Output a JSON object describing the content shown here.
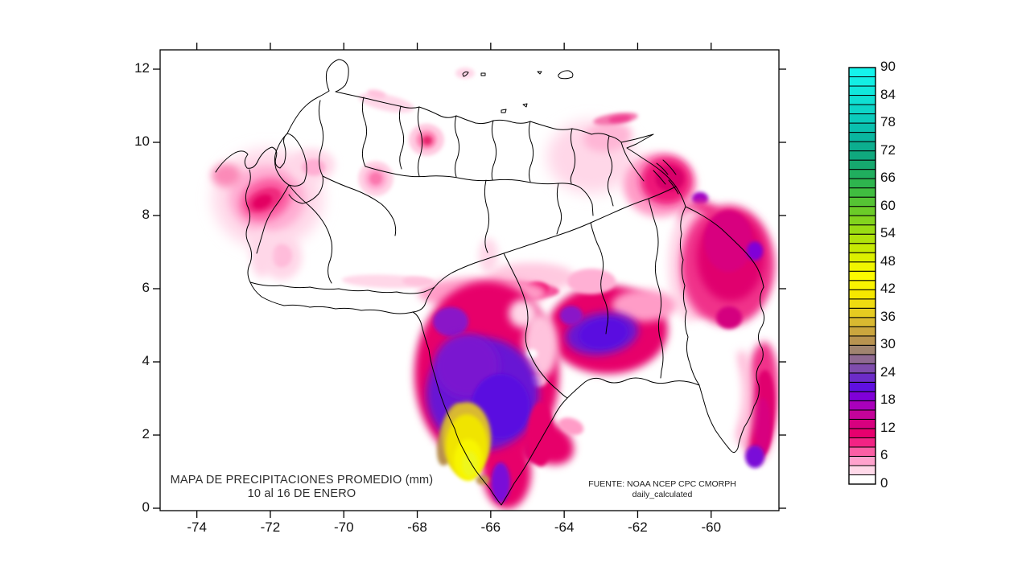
{
  "figure": {
    "title_line1": "MAPA DE PRECIPITACIONES PROMEDIO (mm)",
    "title_line2": "10 al 16 DE ENERO",
    "source_line1": "FUENTE: NOAA NCEP CPC CMORPH",
    "source_line2": "daily_calculated",
    "axis_color": "#000000",
    "background": "#ffffff"
  },
  "x_axis": {
    "ticks": [
      -74,
      -72,
      -70,
      -68,
      -66,
      -64,
      -62,
      -60
    ]
  },
  "y_axis": {
    "ticks": [
      0,
      2,
      4,
      6,
      8,
      10,
      12
    ]
  },
  "colorbar": {
    "min": 0,
    "max": 90,
    "segment_step": 2,
    "label_step": 6,
    "labels": [
      0,
      6,
      12,
      18,
      24,
      30,
      36,
      42,
      48,
      54,
      60,
      66,
      72,
      78,
      84,
      90
    ],
    "segment_colors": [
      "#ffffff",
      "#ffd9e9",
      "#ffa2cd",
      "#fb5fa5",
      "#f22384",
      "#e7006e",
      "#d8007f",
      "#c40399",
      "#a900bb",
      "#8000d8",
      "#5f10e0",
      "#6c2cc8",
      "#7f4dad",
      "#8f6a92",
      "#a08470",
      "#b89350",
      "#cba63e",
      "#d9b930",
      "#e5cb20",
      "#eedb10",
      "#f5e800",
      "#faf300",
      "#fcfa00",
      "#f0f500",
      "#dcf000",
      "#c6ea04",
      "#b0e30c",
      "#99dc14",
      "#82d41e",
      "#6bcc28",
      "#55c434",
      "#40bd40",
      "#2eb54e",
      "#20ae5e",
      "#16a86e",
      "#10a87e",
      "#0cae8f",
      "#0ab69f",
      "#0ac0ae",
      "#0bcbbc",
      "#0dd5c8",
      "#0fdfd3",
      "#11e7dc",
      "#13eee4",
      "#15f4ec"
    ]
  },
  "chart_data": {
    "type": "filled-contour-map",
    "region": "Venezuela",
    "units": "mm",
    "lon_range": [
      -75.0,
      -58.2
    ],
    "lat_range": [
      -0.07,
      12.53
    ],
    "scale": "precipitation 0-90 mm, contour interval 2 mm",
    "features": [
      {
        "name": "zulia-halo",
        "lon": -72.06,
        "lat": 8.46,
        "rx": 1.5,
        "ry": 1.36,
        "rot": 0,
        "c": "#ffd7e8",
        "b": "l",
        "mm": 3
      },
      {
        "name": "zulia-mid",
        "lon": -72.09,
        "lat": 8.46,
        "rx": 1.03,
        "ry": 0.9,
        "rot": 0,
        "c": "#ffaed3",
        "b": "m",
        "mm": 5
      },
      {
        "name": "zulia-hot",
        "lon": -72.13,
        "lat": 8.44,
        "rx": 0.72,
        "ry": 0.55,
        "rot": -25,
        "c": "#fb5ca0",
        "b": "m",
        "mm": 7
      },
      {
        "name": "zulia-core",
        "lon": -72.17,
        "lat": 8.42,
        "rx": 0.5,
        "ry": 0.3,
        "rot": -25,
        "c": "#ef2a7e",
        "b": "s",
        "mm": 9
      },
      {
        "name": "zulia-max",
        "lon": -72.22,
        "lat": 8.38,
        "rx": 0.28,
        "ry": 0.17,
        "rot": -25,
        "c": "#e30062,",
        "b": "s",
        "mm": 11
      },
      {
        "name": "guajira-pink",
        "lon": -73.2,
        "lat": 9.1,
        "rx": 0.4,
        "ry": 0.32,
        "rot": 0,
        "c": "#fb8ab8",
        "b": "m",
        "mm": 6
      },
      {
        "name": "falcon-arm",
        "lon": -70.86,
        "lat": 9.38,
        "rx": 0.62,
        "ry": 0.45,
        "rot": 0,
        "c": "#ffd7e8",
        "b": "m",
        "mm": 3
      },
      {
        "name": "falcon-arm-core",
        "lon": -70.82,
        "lat": 9.32,
        "rx": 0.32,
        "ry": 0.23,
        "rot": 0,
        "c": "#ffaed3",
        "b": "s",
        "mm": 4
      },
      {
        "name": "tachira-arm",
        "lon": -71.69,
        "lat": 6.86,
        "rx": 0.55,
        "ry": 0.62,
        "rot": 0,
        "c": "#ffd7e8",
        "b": "m",
        "mm": 3
      },
      {
        "name": "tachira-arm-mid",
        "lon": -71.69,
        "lat": 6.9,
        "rx": 0.28,
        "ry": 0.32,
        "rot": 0,
        "c": "#ffbcda",
        "b": "s",
        "mm": 4
      },
      {
        "name": "border-strip",
        "lon": -72.24,
        "lat": 6.97,
        "rx": 0.31,
        "ry": 0.66,
        "rot": 0,
        "c": "#ffd7e8",
        "b": "m",
        "mm": 2
      },
      {
        "name": "coast-streak-w",
        "lon": -68.84,
        "lat": 11.08,
        "rx": 0.77,
        "ry": 0.22,
        "rot": 12,
        "c": "#ffd7e8",
        "b": "s",
        "mm": 2
      },
      {
        "name": "coast-streak-w2",
        "lon": -69.11,
        "lat": 11.32,
        "rx": 0.26,
        "ry": 0.11,
        "rot": 12,
        "c": "#ffc3dd",
        "b": "s",
        "mm": 3
      },
      {
        "name": "cojedes-ring",
        "lon": -69.13,
        "lat": 9.01,
        "rx": 0.48,
        "ry": 0.48,
        "rot": 0,
        "c": "#ffd0e4",
        "b": "s",
        "mm": 3
      },
      {
        "name": "cojedes-ring2",
        "lon": -69.13,
        "lat": 9.01,
        "rx": 0.31,
        "ry": 0.31,
        "rot": 0,
        "c": "#ffaed3",
        "b": "s",
        "mm": 4
      },
      {
        "name": "cojedes-ring3",
        "lon": -69.13,
        "lat": 9.01,
        "rx": 0.18,
        "ry": 0.18,
        "rot": 0,
        "c": "#fb77ae",
        "b": "s",
        "mm": 6
      },
      {
        "name": "caracas-halo",
        "lon": -67.75,
        "lat": 10.07,
        "rx": 0.48,
        "ry": 0.44,
        "rot": 0,
        "c": "#ffc9e0",
        "b": "s",
        "mm": 3
      },
      {
        "name": "caracas-mid",
        "lon": -67.75,
        "lat": 10.07,
        "rx": 0.28,
        "ry": 0.26,
        "rot": 0,
        "c": "#ff8ab8",
        "b": "s",
        "mm": 6
      },
      {
        "name": "caracas-max",
        "lon": -67.73,
        "lat": 10.05,
        "rx": 0.14,
        "ry": 0.13,
        "rot": 0,
        "c": "#e8256e",
        "b": "s",
        "mm": 10
      },
      {
        "name": "curacao-tint",
        "lon": -66.7,
        "lat": 11.89,
        "rx": 0.26,
        "ry": 0.15,
        "rot": 0,
        "c": "#ffd7e8",
        "b": "s",
        "mm": 2
      },
      {
        "name": "sucre-pale",
        "lon": -63.26,
        "lat": 9.6,
        "rx": 1.2,
        "ry": 0.99,
        "rot": 0,
        "c": "#ffd7e8",
        "b": "l",
        "mm": 2
      },
      {
        "name": "sucre-mid",
        "lon": -62.82,
        "lat": 10.15,
        "rx": 0.66,
        "ry": 0.4,
        "rot": -10,
        "c": "#ffb6d6",
        "b": "m",
        "mm": 4
      },
      {
        "name": "paria-streak",
        "lon": -62.6,
        "lat": 10.64,
        "rx": 0.61,
        "ry": 0.15,
        "rot": -8,
        "c": "#f576ae",
        "b": "s",
        "mm": 6
      },
      {
        "name": "paria-streak-core",
        "lon": -62.49,
        "lat": 10.64,
        "rx": 0.31,
        "ry": 0.09,
        "rot": -8,
        "c": "#ef3d90",
        "b": "s",
        "mm": 8
      },
      {
        "name": "delta-halo",
        "lon": -61.4,
        "lat": 8.84,
        "rx": 0.99,
        "ry": 0.88,
        "rot": 0,
        "c": "#ff9cc7",
        "b": "m",
        "mm": 5
      },
      {
        "name": "delta-deep",
        "lon": -61.22,
        "lat": 8.95,
        "rx": 0.7,
        "ry": 0.66,
        "rot": 0,
        "c": "#ee1878",
        "b": "m",
        "mm": 9
      },
      {
        "name": "delta-max",
        "lon": -61.13,
        "lat": 9.01,
        "rx": 0.39,
        "ry": 0.35,
        "rot": 0,
        "c": "#d8006a",
        "b": "s",
        "mm": 12
      },
      {
        "name": "delta-purple",
        "lon": -60.3,
        "lat": 8.46,
        "rx": 0.22,
        "ry": 0.18,
        "rot": 0,
        "c": "#9b00c8",
        "b": "s",
        "mm": 16
      },
      {
        "name": "delta-connect",
        "lon": -60.3,
        "lat": 7.96,
        "rx": 0.55,
        "ry": 0.44,
        "rot": 0,
        "c": "#f0308a",
        "b": "m",
        "mm": 8
      },
      {
        "name": "essequibo-pale",
        "lon": -60.56,
        "lat": 6.64,
        "rx": 0.61,
        "ry": 1.54,
        "rot": 0,
        "c": "#ffd7e8",
        "b": "m",
        "mm": 2
      },
      {
        "name": "essequibo-fringe",
        "lon": -60.26,
        "lat": 6.64,
        "rx": 0.57,
        "ry": 1.43,
        "rot": 0,
        "c": "#ff9cc7",
        "b": "m",
        "mm": 4
      },
      {
        "name": "east-body",
        "lon": -59.53,
        "lat": 6.64,
        "rx": 1.27,
        "ry": 1.65,
        "rot": 0,
        "c": "#f0308a",
        "b": "m",
        "mm": 8
      },
      {
        "name": "east-deep",
        "lon": -59.47,
        "lat": 6.86,
        "rx": 0.92,
        "ry": 1.21,
        "rot": 0,
        "c": "#e0006e",
        "b": "m",
        "mm": 11
      },
      {
        "name": "east-deeper",
        "lon": -59.53,
        "lat": 7.3,
        "rx": 0.66,
        "ry": 0.84,
        "rot": 0,
        "c": "#d8007f",
        "b": "s",
        "mm": 13
      },
      {
        "name": "east-dark-sub",
        "lon": -59.51,
        "lat": 5.21,
        "rx": 0.35,
        "ry": 0.31,
        "rot": 0,
        "c": "#d4007f",
        "b": "s",
        "mm": 13
      },
      {
        "name": "east-purple",
        "lon": -58.81,
        "lat": 7.03,
        "rx": 0.22,
        "ry": 0.26,
        "rot": 0,
        "c": "#8000d8",
        "b": "s",
        "mm": 18
      },
      {
        "name": "lobe-band",
        "lon": -58.66,
        "lat": 2.9,
        "rx": 0.48,
        "ry": 1.65,
        "rot": 4,
        "c": "#f0308a",
        "b": "m",
        "mm": 8
      },
      {
        "name": "lobe-deeper",
        "lon": -58.61,
        "lat": 2.57,
        "rx": 0.33,
        "ry": 1.21,
        "rot": 4,
        "c": "#e0006e",
        "b": "s",
        "mm": 11
      },
      {
        "name": "lobe-deepest",
        "lon": -58.59,
        "lat": 2.24,
        "rx": 0.22,
        "ry": 0.77,
        "rot": 0,
        "c": "#d8007f",
        "b": "s",
        "mm": 13
      },
      {
        "name": "lobe-pale-strip",
        "lon": -59.16,
        "lat": 3.01,
        "rx": 0.31,
        "ry": 1.32,
        "rot": 0,
        "c": "#ffc3dd",
        "b": "m",
        "mm": 3
      },
      {
        "name": "lobe-white",
        "lon": -59.69,
        "lat": 3.12,
        "rx": 0.53,
        "ry": 1.21,
        "rot": 0,
        "c": "#ffffff",
        "b": "m",
        "mm": 0
      },
      {
        "name": "lobe-purple",
        "lon": -58.81,
        "lat": 1.41,
        "rx": 0.26,
        "ry": 0.31,
        "rot": 0,
        "c": "#7a10d8",
        "b": "s",
        "mm": 19
      },
      {
        "name": "band-pale",
        "lon": -64.9,
        "lat": 6.31,
        "rx": 1.21,
        "ry": 0.4,
        "rot": 0,
        "c": "#ffc9e0",
        "b": "m",
        "mm": 3
      },
      {
        "name": "band-magenta",
        "lon": -65.45,
        "lat": 5.93,
        "rx": 1.32,
        "ry": 0.26,
        "rot": 0,
        "c": "#f5509a",
        "b": "s",
        "mm": 7
      },
      {
        "name": "band-diamond",
        "lon": -64.73,
        "lat": 5.98,
        "rx": 0.31,
        "ry": 0.2,
        "rot": 0,
        "c": "#f00468",
        "b": "s",
        "mm": 10
      },
      {
        "name": "amazonas-pale-top",
        "lon": -66.22,
        "lat": 5.87,
        "rx": 1.75,
        "ry": 0.44,
        "rot": 0,
        "c": "#ff9cc7",
        "b": "m",
        "mm": 4
      },
      {
        "name": "west-wedge",
        "lon": -68.84,
        "lat": 6.2,
        "rx": 1.21,
        "ry": 0.18,
        "rot": 2,
        "c": "#ffd7e8",
        "b": "s",
        "mm": 2
      },
      {
        "name": "west-wedge2",
        "lon": -67.97,
        "lat": 6.2,
        "rx": 0.44,
        "ry": 0.13,
        "rot": 2,
        "c": "#ffc3dd",
        "b": "s",
        "mm": 3
      },
      {
        "name": "tongue-n",
        "lon": -66.06,
        "lat": 6.9,
        "rx": 0.26,
        "ry": 0.48,
        "rot": 0,
        "c": "#ffd7e8",
        "b": "m",
        "mm": 2
      },
      {
        "name": "amazonas-body",
        "lon": -66.11,
        "lat": 3.67,
        "rx": 1.97,
        "ry": 2.53,
        "rot": 0,
        "c": "#e7006b",
        "b": "m",
        "mm": 11
      },
      {
        "name": "amazonas-tip",
        "lon": -65.56,
        "lat": 0.97,
        "rx": 0.66,
        "ry": 0.99,
        "rot": 0,
        "c": "#e7006b",
        "b": "m",
        "mm": 11
      },
      {
        "name": "bolivar-body",
        "lon": -62.82,
        "lat": 4.88,
        "rx": 1.64,
        "ry": 1.21,
        "rot": 0,
        "c": "#e7006b",
        "b": "m",
        "mm": 11
      },
      {
        "name": "bolivar-fringe",
        "lon": -61.83,
        "lat": 5.54,
        "rx": 0.88,
        "ry": 0.44,
        "rot": 0,
        "c": "#ff9cc7",
        "b": "m",
        "mm": 4
      },
      {
        "name": "bolivar-n-pink",
        "lon": -63.26,
        "lat": 6.2,
        "rx": 0.66,
        "ry": 0.35,
        "rot": 0,
        "c": "#ffb0d4",
        "b": "s",
        "mm": 4
      },
      {
        "name": "se-protrusion",
        "lon": -64.46,
        "lat": 1.8,
        "rx": 0.77,
        "ry": 0.55,
        "rot": 30,
        "c": "#e7006b",
        "b": "m",
        "mm": 10
      },
      {
        "name": "protrusion-tip",
        "lon": -63.81,
        "lat": 2.24,
        "rx": 0.35,
        "ry": 0.22,
        "rot": 20,
        "c": "#ff9cc7",
        "b": "s",
        "mm": 4
      },
      {
        "name": "gap-pale",
        "lon": -64.64,
        "lat": 4.44,
        "rx": 0.48,
        "ry": 0.88,
        "rot": 0,
        "c": "#ffc3dd",
        "b": "m",
        "mm": 3
      },
      {
        "name": "gap-pale-top",
        "lon": -65.12,
        "lat": 5.32,
        "rx": 0.39,
        "ry": 0.39,
        "rot": 0,
        "c": "#ffd7e8",
        "b": "m",
        "mm": 2
      },
      {
        "name": "gap-white-hole",
        "lon": -64.88,
        "lat": 4.22,
        "rx": 0.15,
        "ry": 0.13,
        "rot": 0,
        "c": "#ffffff",
        "b": "s",
        "mm": 0
      },
      {
        "name": "gap-pink-hole",
        "lon": -64.73,
        "lat": 3.49,
        "rx": 0.26,
        "ry": 0.18,
        "rot": 0,
        "c": "#ffb8d6",
        "b": "s",
        "mm": 4
      },
      {
        "name": "amazonas-purple",
        "lon": -66.22,
        "lat": 3.12,
        "rx": 1.53,
        "ry": 1.54,
        "rot": 0,
        "c": "#6714d4",
        "b": "m",
        "mm": 17
      },
      {
        "name": "purple-upleft",
        "lon": -67.09,
        "lat": 5.1,
        "rx": 0.48,
        "ry": 0.4,
        "rot": 0,
        "c": "#8a14c8",
        "b": "s",
        "mm": 15
      },
      {
        "name": "purple-upper",
        "lon": -66.65,
        "lat": 3.89,
        "rx": 0.88,
        "ry": 0.88,
        "rot": 0,
        "c": "#7a14d0",
        "b": "m",
        "mm": 16
      },
      {
        "name": "purple-deep",
        "lon": -65.73,
        "lat": 2.79,
        "rx": 0.79,
        "ry": 0.88,
        "rot": 0,
        "c": "#5a10e0",
        "b": "s",
        "mm": 19
      },
      {
        "name": "bolivar-purple",
        "lon": -62.97,
        "lat": 4.77,
        "rx": 0.99,
        "ry": 0.57,
        "rot": -8,
        "c": "#6714d4",
        "b": "m",
        "mm": 17
      },
      {
        "name": "bolivar-purple-core",
        "lon": -62.93,
        "lat": 4.77,
        "rx": 0.66,
        "ry": 0.4,
        "rot": -8,
        "c": "#5a10e0",
        "b": "s",
        "mm": 19
      },
      {
        "name": "bolivar-purple-w",
        "lon": -63.81,
        "lat": 5.27,
        "rx": 0.31,
        "ry": 0.26,
        "rot": 0,
        "c": "#8a14c8",
        "b": "s",
        "mm": 15
      },
      {
        "name": "crimson-in-purple",
        "lon": -64.79,
        "lat": 1.58,
        "rx": 0.31,
        "ry": 0.35,
        "rot": 0,
        "c": "#e0006e",
        "b": "s",
        "mm": 11
      },
      {
        "name": "east-edge-magenta",
        "lon": -64.64,
        "lat": 2.02,
        "rx": 0.35,
        "ry": 0.88,
        "rot": 0,
        "c": "#e7006b",
        "b": "s",
        "mm": 11
      },
      {
        "name": "tip-purple",
        "lon": -65.73,
        "lat": 0.7,
        "rx": 0.26,
        "ry": 0.55,
        "rot": 0,
        "c": "#7a10d8",
        "b": "s",
        "mm": 17
      },
      {
        "name": "tan-rim",
        "lon": -67.09,
        "lat": 2.02,
        "rx": 0.31,
        "ry": 0.88,
        "rot": 15,
        "c": "#b89050",
        "b": "s",
        "mm": 30
      },
      {
        "name": "gold",
        "lon": -66.65,
        "lat": 1.91,
        "rx": 0.66,
        "ry": 0.99,
        "rot": 0,
        "c": "#d9b930",
        "b": "s",
        "mm": 34
      },
      {
        "name": "yellow",
        "lon": -66.65,
        "lat": 1.69,
        "rx": 0.57,
        "ry": 0.88,
        "rot": 0,
        "c": "#f0e400",
        "b": "s",
        "mm": 40
      },
      {
        "name": "yellow-bright",
        "lon": -66.61,
        "lat": 1.32,
        "rx": 0.39,
        "ry": 0.57,
        "rot": 0,
        "c": "#f8f500",
        "b": "s",
        "mm": 44
      },
      {
        "name": "yellow-max",
        "lon": -66.57,
        "lat": 1.21,
        "rx": 0.22,
        "ry": 0.35,
        "rot": 0,
        "c": "#eef71c",
        "b": "s",
        "mm": 46
      },
      {
        "name": "tan-bottom",
        "lon": -66.22,
        "lat": 0.77,
        "rx": 0.18,
        "ry": 0.13,
        "rot": 0,
        "c": "#c09a50",
        "b": "s",
        "mm": 30
      }
    ]
  }
}
